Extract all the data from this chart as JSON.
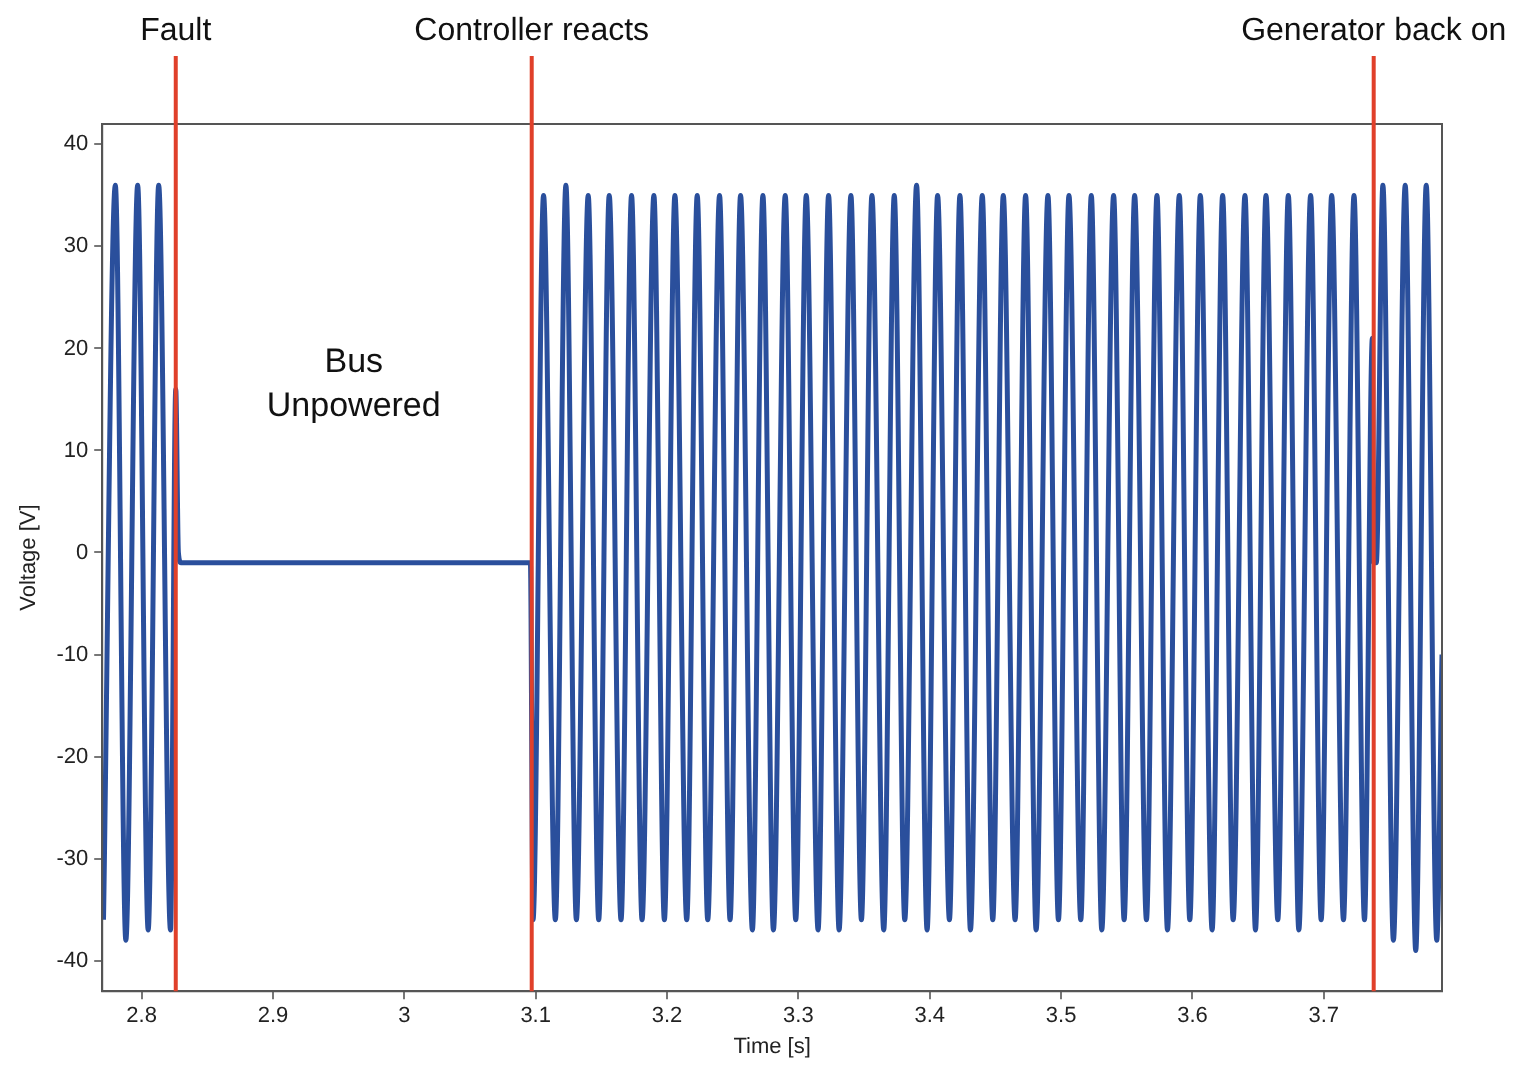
{
  "chart_data": {
    "type": "line",
    "xlabel": "Time [s]",
    "ylabel": "Voltage [V]",
    "xlim": [
      2.77,
      3.79
    ],
    "ylim": [
      -43,
      42
    ],
    "xticks": [
      2.8,
      2.9,
      3,
      3.1,
      3.2,
      3.3,
      3.4,
      3.5,
      3.6,
      3.7
    ],
    "yticks": [
      -40,
      -30,
      -20,
      -10,
      0,
      10,
      20,
      30,
      40
    ],
    "grid": false,
    "legend": false,
    "marker": "none",
    "line_style": "solid",
    "series": [
      {
        "color": "#2a4f9c",
        "x": [
          2.771,
          2.78,
          2.788,
          2.797,
          2.805,
          2.813,
          2.822,
          2.826,
          2.828,
          2.83,
          2.85,
          2.9,
          2.95,
          3.0,
          3.05,
          3.096,
          3.098,
          3.106,
          3.115,
          3.123,
          3.131,
          3.14,
          3.148,
          3.156,
          3.165,
          3.173,
          3.181,
          3.19,
          3.198,
          3.206,
          3.215,
          3.223,
          3.231,
          3.24,
          3.248,
          3.256,
          3.265,
          3.273,
          3.281,
          3.29,
          3.298,
          3.306,
          3.315,
          3.323,
          3.331,
          3.34,
          3.348,
          3.356,
          3.365,
          3.373,
          3.381,
          3.39,
          3.398,
          3.406,
          3.415,
          3.423,
          3.431,
          3.44,
          3.448,
          3.456,
          3.465,
          3.473,
          3.481,
          3.49,
          3.498,
          3.506,
          3.515,
          3.523,
          3.531,
          3.54,
          3.548,
          3.556,
          3.565,
          3.573,
          3.581,
          3.59,
          3.598,
          3.606,
          3.615,
          3.623,
          3.631,
          3.64,
          3.648,
          3.656,
          3.665,
          3.673,
          3.681,
          3.69,
          3.698,
          3.706,
          3.715,
          3.723,
          3.731,
          3.737,
          3.738,
          3.74,
          3.745,
          3.753,
          3.762,
          3.77,
          3.778,
          3.786,
          3.79
        ],
        "values": [
          -36,
          36,
          -38,
          36,
          -37,
          36,
          -37,
          16,
          0,
          -1,
          -1,
          -1,
          -1,
          -1,
          -1,
          -1,
          -36,
          35,
          -36,
          36,
          -36,
          35,
          -36,
          35,
          -36,
          35,
          -36,
          35,
          -36,
          35,
          -36,
          35,
          -36,
          35,
          -36,
          35,
          -37,
          35,
          -37,
          35,
          -36,
          35,
          -37,
          35,
          -37,
          35,
          -36,
          35,
          -37,
          35,
          -36,
          36,
          -37,
          35,
          -36,
          35,
          -37,
          35,
          -36,
          35,
          -36,
          35,
          -37,
          35,
          -36,
          35,
          -36,
          35,
          -37,
          35,
          -36,
          35,
          -36,
          35,
          -37,
          35,
          -36,
          35,
          -37,
          35,
          -36,
          35,
          -37,
          35,
          -36,
          35,
          -37,
          35,
          -36,
          35,
          -36,
          35,
          -36,
          21,
          -1,
          -1,
          36,
          -38,
          36,
          -39,
          36,
          -38,
          -10
        ]
      }
    ],
    "ref_lines": [
      {
        "axis": "x",
        "value": 2.826,
        "label": "Fault",
        "color": "#e0402a"
      },
      {
        "axis": "x",
        "value": 3.097,
        "label": "Controller reacts",
        "color": "#e0402a"
      },
      {
        "axis": "x",
        "value": 3.738,
        "label": "Generator back on",
        "color": "#e0402a"
      }
    ],
    "annotations": [
      "Bus\nUnpowered"
    ]
  }
}
